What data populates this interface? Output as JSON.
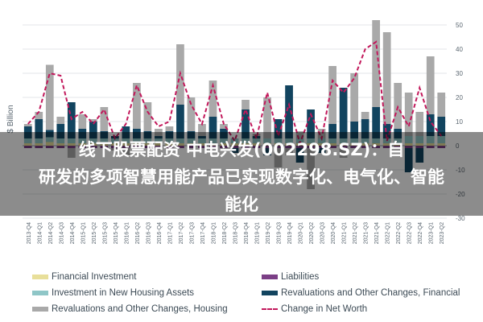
{
  "chart_data": {
    "type": "bar",
    "ylabel": "$ Billion",
    "ylim": [
      -30,
      50
    ],
    "yticks": [
      50,
      40,
      30,
      20,
      10,
      0,
      -10,
      -20,
      -30
    ],
    "categories": [
      "2013-Q4",
      "2014-Q1",
      "2014-Q2",
      "2014-Q3",
      "2014-Q4",
      "2015-Q1",
      "2015-Q2",
      "2015-Q3",
      "2015-Q4",
      "2016-Q1",
      "2016-Q2",
      "2016-Q3",
      "2016-Q4",
      "2017-Q1",
      "2017-Q2",
      "2017-Q3",
      "2017-Q4",
      "2018-Q1",
      "2018-Q2",
      "2018-Q3",
      "2018-Q4",
      "2019-Q1",
      "2019-Q2",
      "2019-Q3",
      "2019-Q4",
      "2020-Q1",
      "2020-Q2",
      "2020-Q3",
      "2020-Q4",
      "2021-Q1",
      "2021-Q2",
      "2021-Q3",
      "2021-Q4",
      "2022-Q1",
      "2022-Q2",
      "2022-Q3",
      "2022-Q4",
      "2023-Q1",
      "2023-Q2"
    ],
    "stacked": true,
    "series": [
      {
        "name": "Financial Investment",
        "color": "#e8df9a",
        "values": [
          1,
          1,
          1.5,
          1,
          1,
          1,
          1,
          1,
          1,
          1,
          1,
          1,
          1,
          1,
          1,
          1,
          1,
          1,
          1,
          1,
          1,
          1,
          1,
          1,
          1,
          1,
          1,
          1,
          1,
          1,
          1,
          1,
          1,
          1,
          1,
          1,
          1,
          1,
          1
        ]
      },
      {
        "name": "Liabilities",
        "color": "#7b3f86",
        "values": [
          -1,
          -1,
          -1,
          -1,
          -1,
          -1,
          -1,
          -1,
          -1,
          -1,
          -1,
          -1,
          -1,
          -1,
          -1,
          -1,
          -1,
          -1,
          -1,
          -1,
          -1,
          -1,
          -1,
          -1,
          -1,
          -1,
          -1,
          -1,
          -1,
          -1,
          -1,
          -1,
          -1,
          -1,
          -1,
          -1,
          -1,
          -1,
          -1
        ]
      },
      {
        "name": "Investment in New Housing Assets",
        "color": "#8fc6c7",
        "values": [
          2,
          2,
          2,
          2,
          2,
          2,
          2,
          2,
          2,
          2,
          2,
          2,
          2,
          2,
          2,
          2,
          2,
          2,
          2,
          2,
          2,
          2,
          2,
          2,
          2,
          2,
          2,
          2,
          2,
          2,
          2,
          2,
          2,
          2,
          2,
          3,
          3,
          3,
          3
        ]
      },
      {
        "name": "Revaluations and Other Changes, Financial",
        "color": "#12445f",
        "values": [
          5,
          8,
          3,
          6,
          15,
          4,
          7,
          3,
          1,
          5,
          4,
          3,
          1,
          3,
          14,
          3,
          1,
          9,
          4,
          -2,
          12,
          1,
          -3,
          8,
          22,
          -6,
          12,
          -2,
          6,
          21,
          7,
          8,
          13,
          6,
          4,
          -10,
          -6,
          9,
          8
        ]
      },
      {
        "name": "Revaluations and Other Changes, Housing",
        "color": "#a9a9a9",
        "values": [
          1,
          3,
          27,
          3,
          -4,
          6,
          1,
          10,
          -1,
          -3,
          19,
          12,
          3,
          2,
          25,
          14,
          5,
          15,
          2,
          0,
          4,
          1,
          17,
          -8,
          -3,
          3,
          -17,
          4,
          24,
          -4,
          20,
          3,
          36,
          38,
          19,
          18,
          10,
          24,
          10
        ]
      }
    ],
    "line": {
      "name": "Change in Net Worth",
      "color": "#c2185b",
      "values": [
        9,
        14,
        30,
        29,
        11,
        14,
        9,
        15,
        3,
        9,
        25,
        14,
        8,
        10,
        30,
        17,
        9,
        25,
        9,
        2,
        15,
        3,
        22,
        4,
        17,
        1,
        13,
        3,
        27,
        22,
        28,
        40,
        43,
        2,
        16,
        8,
        24,
        10,
        4
      ]
    }
  },
  "legend": {
    "items": [
      {
        "label": "Financial Investment",
        "color": "#e8df9a"
      },
      {
        "label": "Investment in New Housing Assets",
        "color": "#8fc6c7"
      },
      {
        "label": "Revaluations and Other Changes, Housing",
        "color": "#a9a9a9"
      },
      {
        "label": "Liabilities",
        "color": "#7b3f86"
      },
      {
        "label": "Revaluations and Other Changes, Financial",
        "color": "#12445f"
      },
      {
        "label": "Change in Net Worth",
        "color": "#c2185b"
      }
    ]
  },
  "overlay": {
    "line1": "线下股票配资 中电兴发(002298.SZ)：自",
    "line2": "研发的多项智慧用能产品已实现数字化、电气化、智能",
    "line3": "能化"
  }
}
